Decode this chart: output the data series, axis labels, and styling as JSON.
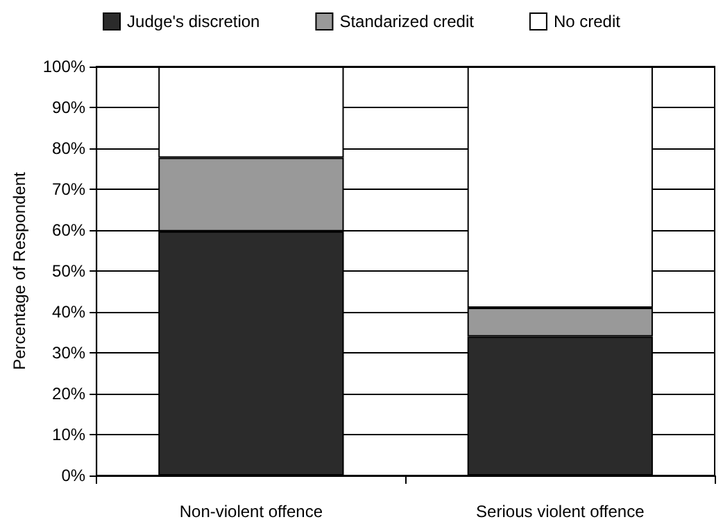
{
  "chart_data": {
    "type": "bar",
    "stacked": true,
    "ylabel": "Percentage of Respondent",
    "categories": [
      "Non-violent offence",
      "Serious violent offence"
    ],
    "series": [
      {
        "name": "Judge's discretion",
        "color": "#2b2b2b",
        "values": [
          59.7,
          34
        ]
      },
      {
        "name": "Standarized credit",
        "color": "#999999",
        "values": [
          18,
          7
        ]
      },
      {
        "name": "No credit",
        "color": "#ffffff",
        "values": [
          22.3,
          59
        ]
      }
    ],
    "ylim": [
      0,
      100
    ],
    "yticks": [
      {
        "value": 0,
        "label": "0%"
      },
      {
        "value": 10,
        "label": "10%"
      },
      {
        "value": 20,
        "label": "20%"
      },
      {
        "value": 30,
        "label": "30%"
      },
      {
        "value": 40,
        "label": "40%"
      },
      {
        "value": 50,
        "label": "50%"
      },
      {
        "value": 60,
        "label": "60%"
      },
      {
        "value": 70,
        "label": "70%"
      },
      {
        "value": 80,
        "label": "80%"
      },
      {
        "value": 90,
        "label": "90%"
      },
      {
        "value": 100,
        "label": "100%"
      }
    ],
    "grid": "y",
    "legend": "top"
  }
}
